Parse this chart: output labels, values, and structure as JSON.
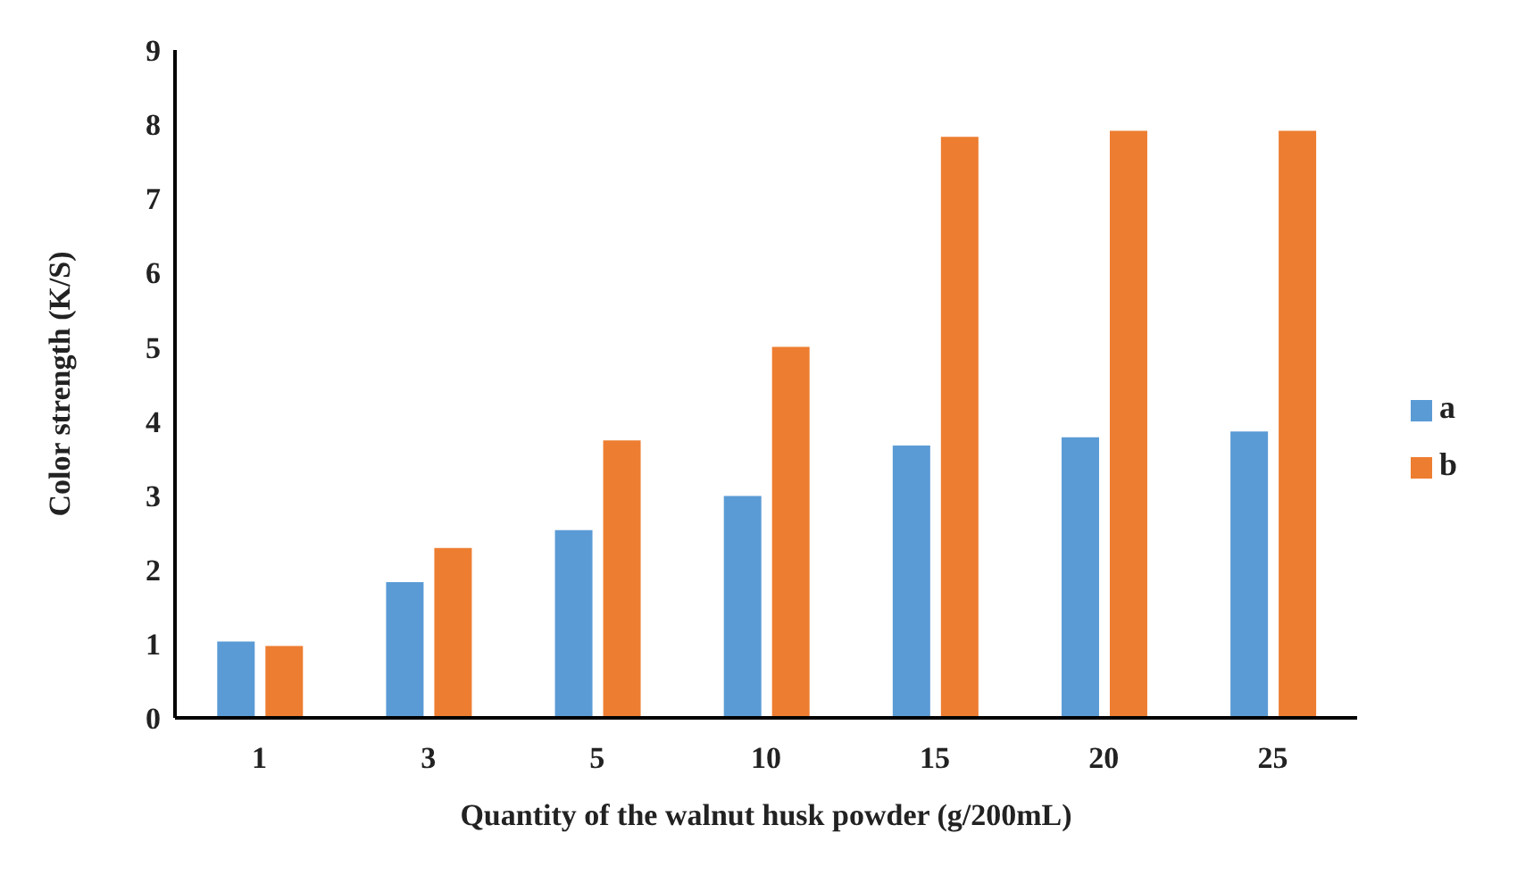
{
  "chart_data": {
    "type": "bar",
    "xlabel": "Quantity of the walnut husk powder (g/200mL)",
    "ylabel": "Color strength (K/S)",
    "categories": [
      "1",
      "3",
      "5",
      "10",
      "15",
      "20",
      "25"
    ],
    "series": [
      {
        "name": "a",
        "color": "#5b9bd5",
        "values": [
          1.03,
          1.83,
          2.53,
          2.99,
          3.67,
          3.78,
          3.86
        ]
      },
      {
        "name": "b",
        "color": "#ed7d31",
        "values": [
          0.97,
          2.29,
          3.74,
          5.0,
          7.83,
          7.91,
          7.91
        ]
      }
    ],
    "ylim": [
      0,
      9
    ],
    "yticks": [
      0,
      1,
      2,
      3,
      4,
      5,
      6,
      7,
      8,
      9
    ],
    "grid": false,
    "legend": "right"
  }
}
